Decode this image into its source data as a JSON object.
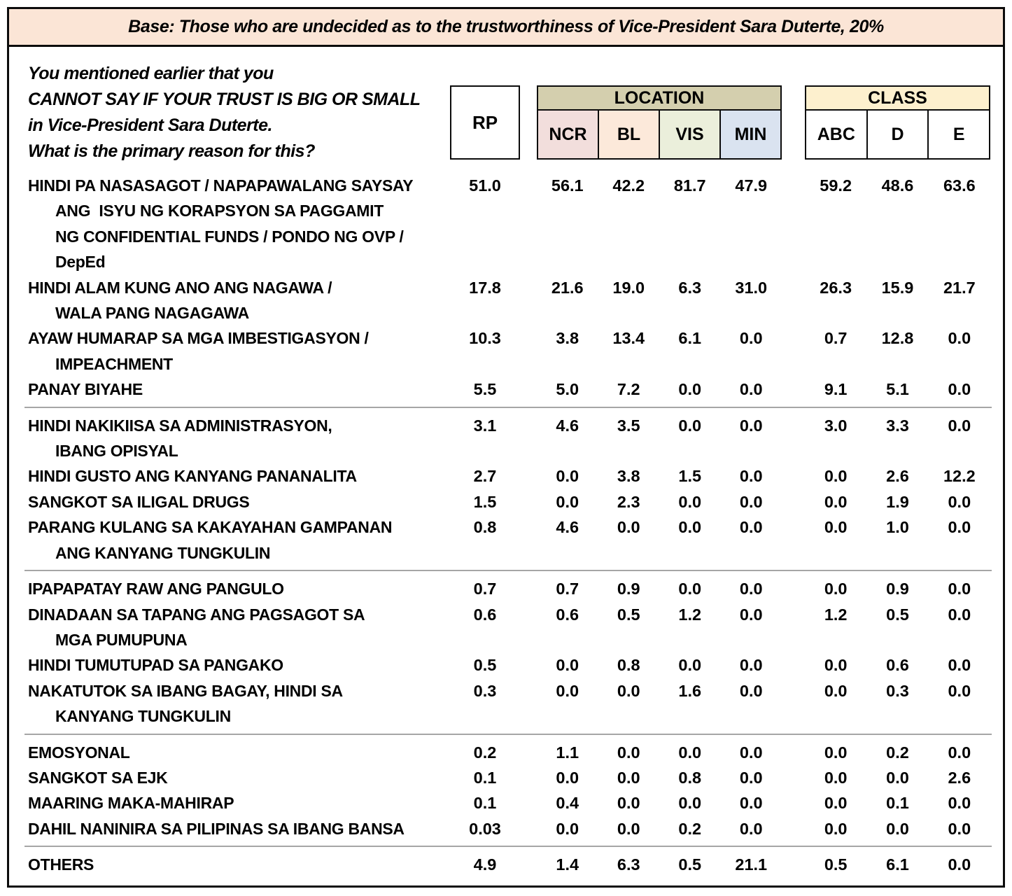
{
  "banner": {
    "text": "Base: Those who are undecided as to the trustworthiness of Vice-President Sara Duterte, 20%"
  },
  "question": {
    "lines": [
      "You mentioned earlier that you",
      "CANNOT SAY IF YOUR TRUST IS BIG OR SMALL",
      "in Vice-President Sara Duterte.",
      "What is the primary reason for this?"
    ]
  },
  "header": {
    "rp": "RP",
    "location": {
      "title": "LOCATION",
      "columns": [
        "NCR",
        "BL",
        "VIS",
        "MIN"
      ]
    },
    "class": {
      "title": "CLASS",
      "columns": [
        "ABC",
        "D",
        "E"
      ]
    }
  },
  "colors": {
    "banner_bg": "#FBE5D6",
    "location_header_bg": "#D4CFAE",
    "ncr_bg": "#F2DEDC",
    "bl_bg": "#FCE9DA",
    "vis_bg": "#EBEFDB",
    "min_bg": "#DAE3F0",
    "class_header_bg": "#FDF0CE",
    "divider": "#A6A6A6"
  },
  "table": {
    "column_keys": [
      "rp",
      "ncr",
      "bl",
      "vis",
      "min",
      "abc",
      "d",
      "e"
    ],
    "groups": [
      {
        "rows": [
          {
            "lines": [
              "HINDI PA NASASAGOT / NAPAPAWALANG SAYSAY",
              "ANG  ISYU NG KORAPSYON SA PAGGAMIT",
              "NG CONFIDENTIAL FUNDS / PONDO NG OVP /",
              "DepEd"
            ],
            "values": [
              "51.0",
              "56.1",
              "42.2",
              "81.7",
              "47.9",
              "59.2",
              "48.6",
              "63.6"
            ]
          },
          {
            "lines": [
              "HINDI ALAM KUNG ANO ANG NAGAWA /",
              "WALA PANG NAGAGAWA"
            ],
            "values": [
              "17.8",
              "21.6",
              "19.0",
              "6.3",
              "31.0",
              "26.3",
              "15.9",
              "21.7"
            ]
          },
          {
            "lines": [
              "AYAW HUMARAP SA MGA IMBESTIGASYON /",
              "IMPEACHMENT"
            ],
            "values": [
              "10.3",
              "3.8",
              "13.4",
              "6.1",
              "0.0",
              "0.7",
              "12.8",
              "0.0"
            ]
          },
          {
            "lines": [
              "PANAY BIYAHE"
            ],
            "values": [
              "5.5",
              "5.0",
              "7.2",
              "0.0",
              "0.0",
              "9.1",
              "5.1",
              "0.0"
            ]
          }
        ]
      },
      {
        "rows": [
          {
            "lines": [
              "HINDI NAKIKIISA SA ADMINISTRASYON,",
              "IBANG OPISYAL"
            ],
            "values": [
              "3.1",
              "4.6",
              "3.5",
              "0.0",
              "0.0",
              "3.0",
              "3.3",
              "0.0"
            ]
          },
          {
            "lines": [
              "HINDI GUSTO ANG KANYANG PANANALITA"
            ],
            "values": [
              "2.7",
              "0.0",
              "3.8",
              "1.5",
              "0.0",
              "0.0",
              "2.6",
              "12.2"
            ]
          },
          {
            "lines": [
              "SANGKOT SA ILIGAL DRUGS"
            ],
            "values": [
              "1.5",
              "0.0",
              "2.3",
              "0.0",
              "0.0",
              "0.0",
              "1.9",
              "0.0"
            ]
          },
          {
            "lines": [
              "PARANG KULANG SA KAKAYAHAN GAMPANAN",
              "ANG KANYANG TUNGKULIN"
            ],
            "values": [
              "0.8",
              "4.6",
              "0.0",
              "0.0",
              "0.0",
              "0.0",
              "1.0",
              "0.0"
            ]
          }
        ]
      },
      {
        "rows": [
          {
            "lines": [
              "IPAPAPATAY RAW ANG PANGULO"
            ],
            "values": [
              "0.7",
              "0.7",
              "0.9",
              "0.0",
              "0.0",
              "0.0",
              "0.9",
              "0.0"
            ]
          },
          {
            "lines": [
              "DINADAAN SA TAPANG ANG PAGSAGOT SA",
              "MGA PUMUPUNA"
            ],
            "values": [
              "0.6",
              "0.6",
              "0.5",
              "1.2",
              "0.0",
              "1.2",
              "0.5",
              "0.0"
            ]
          },
          {
            "lines": [
              "HINDI TUMUTUPAD SA PANGAKO"
            ],
            "values": [
              "0.5",
              "0.0",
              "0.8",
              "0.0",
              "0.0",
              "0.0",
              "0.6",
              "0.0"
            ]
          },
          {
            "lines": [
              "NAKATUTOK SA IBANG BAGAY, HINDI SA",
              "KANYANG TUNGKULIN"
            ],
            "values": [
              "0.3",
              "0.0",
              "0.0",
              "1.6",
              "0.0",
              "0.0",
              "0.3",
              "0.0"
            ]
          }
        ]
      },
      {
        "rows": [
          {
            "lines": [
              "EMOSYONAL"
            ],
            "values": [
              "0.2",
              "1.1",
              "0.0",
              "0.0",
              "0.0",
              "0.0",
              "0.2",
              "0.0"
            ]
          },
          {
            "lines": [
              "SANGKOT SA EJK"
            ],
            "values": [
              "0.1",
              "0.0",
              "0.0",
              "0.8",
              "0.0",
              "0.0",
              "0.0",
              "2.6"
            ]
          },
          {
            "lines": [
              "MAARING MAKA-MAHIRAP"
            ],
            "values": [
              "0.1",
              "0.4",
              "0.0",
              "0.0",
              "0.0",
              "0.0",
              "0.1",
              "0.0"
            ]
          },
          {
            "lines": [
              "DAHIL NANINIRA SA PILIPINAS SA IBANG BANSA"
            ],
            "values": [
              "0.03",
              "0.0",
              "0.0",
              "0.2",
              "0.0",
              "0.0",
              "0.0",
              "0.0"
            ]
          }
        ]
      },
      {
        "rows": [
          {
            "lines": [
              "OTHERS"
            ],
            "values": [
              "4.9",
              "1.4",
              "6.3",
              "0.5",
              "21.1",
              "0.5",
              "6.1",
              "0.0"
            ]
          }
        ]
      }
    ]
  },
  "chart_data": {
    "type": "table",
    "title": "Primary reason for being undecided on trust in Vice-President Sara Duterte",
    "columns": [
      "RP",
      "NCR",
      "BL",
      "VIS",
      "MIN",
      "ABC",
      "D",
      "E"
    ],
    "rows": [
      {
        "label": "HINDI PA NASASAGOT / NAPAPAWALANG SAYSAY ANG ISYU NG KORAPSYON SA PAGGAMIT NG CONFIDENTIAL FUNDS / PONDO NG OVP / DepEd",
        "values": [
          51.0,
          56.1,
          42.2,
          81.7,
          47.9,
          59.2,
          48.6,
          63.6
        ]
      },
      {
        "label": "HINDI ALAM KUNG ANO ANG NAGAWA / WALA PANG NAGAGAWA",
        "values": [
          17.8,
          21.6,
          19.0,
          6.3,
          31.0,
          26.3,
          15.9,
          21.7
        ]
      },
      {
        "label": "AYAW HUMARAP SA MGA IMBESTIGASYON / IMPEACHMENT",
        "values": [
          10.3,
          3.8,
          13.4,
          6.1,
          0.0,
          0.7,
          12.8,
          0.0
        ]
      },
      {
        "label": "PANAY BIYAHE",
        "values": [
          5.5,
          5.0,
          7.2,
          0.0,
          0.0,
          9.1,
          5.1,
          0.0
        ]
      },
      {
        "label": "HINDI NAKIKIISA SA ADMINISTRASYON, IBANG OPISYAL",
        "values": [
          3.1,
          4.6,
          3.5,
          0.0,
          0.0,
          3.0,
          3.3,
          0.0
        ]
      },
      {
        "label": "HINDI GUSTO ANG KANYANG PANANALITA",
        "values": [
          2.7,
          0.0,
          3.8,
          1.5,
          0.0,
          0.0,
          2.6,
          12.2
        ]
      },
      {
        "label": "SANGKOT SA ILIGAL DRUGS",
        "values": [
          1.5,
          0.0,
          2.3,
          0.0,
          0.0,
          0.0,
          1.9,
          0.0
        ]
      },
      {
        "label": "PARANG KULANG SA KAKAYAHAN GAMPANAN ANG KANYANG TUNGKULIN",
        "values": [
          0.8,
          4.6,
          0.0,
          0.0,
          0.0,
          0.0,
          1.0,
          0.0
        ]
      },
      {
        "label": "IPAPAPATAY RAW ANG PANGULO",
        "values": [
          0.7,
          0.7,
          0.9,
          0.0,
          0.0,
          0.0,
          0.9,
          0.0
        ]
      },
      {
        "label": "DINADAAN SA TAPANG ANG PAGSAGOT SA MGA PUMUPUNA",
        "values": [
          0.6,
          0.6,
          0.5,
          1.2,
          0.0,
          1.2,
          0.5,
          0.0
        ]
      },
      {
        "label": "HINDI TUMUTUPAD SA PANGAKO",
        "values": [
          0.5,
          0.0,
          0.8,
          0.0,
          0.0,
          0.0,
          0.6,
          0.0
        ]
      },
      {
        "label": "NAKATUTOK SA IBANG BAGAY, HINDI SA KANYANG TUNGKULIN",
        "values": [
          0.3,
          0.0,
          0.0,
          1.6,
          0.0,
          0.0,
          0.3,
          0.0
        ]
      },
      {
        "label": "EMOSYONAL",
        "values": [
          0.2,
          1.1,
          0.0,
          0.0,
          0.0,
          0.0,
          0.2,
          0.0
        ]
      },
      {
        "label": "SANGKOT SA EJK",
        "values": [
          0.1,
          0.0,
          0.0,
          0.8,
          0.0,
          0.0,
          0.0,
          2.6
        ]
      },
      {
        "label": "MAARING MAKA-MAHIRAP",
        "values": [
          0.1,
          0.4,
          0.0,
          0.0,
          0.0,
          0.0,
          0.1,
          0.0
        ]
      },
      {
        "label": "DAHIL NANINIRA SA PILIPINAS SA IBANG BANSA",
        "values": [
          0.03,
          0.0,
          0.0,
          0.2,
          0.0,
          0.0,
          0.0,
          0.0
        ]
      },
      {
        "label": "OTHERS",
        "values": [
          4.9,
          1.4,
          6.3,
          0.5,
          21.1,
          0.5,
          6.1,
          0.0
        ]
      }
    ]
  }
}
